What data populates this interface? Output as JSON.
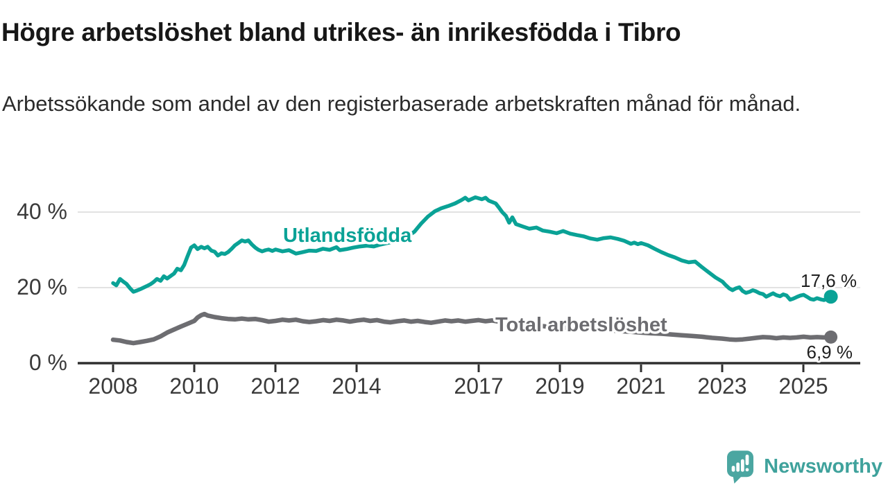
{
  "header": {
    "title": "Högre arbetslöshet bland utrikes- än inrikesfödda i Tibro",
    "subtitle": "Arbetssökande som andel av den registerbaserade arbetskraften månad för månad."
  },
  "chart_data": {
    "type": "line",
    "unit": "%",
    "x_range": [
      2008,
      2025.67
    ],
    "ylim": [
      0,
      46
    ],
    "grid": "horizontal",
    "yticks": [
      "40 %",
      "20 %",
      "0 %"
    ],
    "ytick_values": [
      40,
      20,
      0
    ],
    "xticks": [
      "2008",
      "2010",
      "2012",
      "2014",
      "2017",
      "2019",
      "2021",
      "2023",
      "2025"
    ],
    "xtick_values": [
      2008,
      2010,
      2012,
      2014,
      2017,
      2019,
      2021,
      2023,
      2025
    ],
    "series": [
      {
        "name": "Utlandsfödda",
        "color": "#0aa296",
        "line_width": 5.5,
        "dot_radius": 10,
        "end_label": "17,6 %",
        "end_value": 17.6,
        "points": [
          [
            2008.0,
            21.2
          ],
          [
            2008.08,
            20.6
          ],
          [
            2008.17,
            22.3
          ],
          [
            2008.25,
            21.6
          ],
          [
            2008.33,
            21.0
          ],
          [
            2008.42,
            19.8
          ],
          [
            2008.5,
            18.9
          ],
          [
            2008.58,
            19.2
          ],
          [
            2008.67,
            19.6
          ],
          [
            2008.75,
            20.0
          ],
          [
            2008.83,
            20.4
          ],
          [
            2008.92,
            20.9
          ],
          [
            2009.0,
            21.5
          ],
          [
            2009.08,
            22.3
          ],
          [
            2009.17,
            21.8
          ],
          [
            2009.25,
            23.0
          ],
          [
            2009.33,
            22.4
          ],
          [
            2009.42,
            23.1
          ],
          [
            2009.5,
            23.7
          ],
          [
            2009.58,
            25.0
          ],
          [
            2009.67,
            24.6
          ],
          [
            2009.75,
            26.0
          ],
          [
            2009.83,
            28.2
          ],
          [
            2009.92,
            30.6
          ],
          [
            2010.0,
            31.2
          ],
          [
            2010.08,
            30.2
          ],
          [
            2010.17,
            30.8
          ],
          [
            2010.25,
            30.4
          ],
          [
            2010.33,
            30.8
          ],
          [
            2010.42,
            29.8
          ],
          [
            2010.5,
            29.5
          ],
          [
            2010.58,
            28.5
          ],
          [
            2010.67,
            29.1
          ],
          [
            2010.75,
            28.9
          ],
          [
            2010.83,
            29.4
          ],
          [
            2010.92,
            30.3
          ],
          [
            2011.0,
            31.2
          ],
          [
            2011.08,
            31.8
          ],
          [
            2011.17,
            32.5
          ],
          [
            2011.25,
            32.2
          ],
          [
            2011.33,
            32.5
          ],
          [
            2011.42,
            31.4
          ],
          [
            2011.5,
            30.6
          ],
          [
            2011.58,
            30.0
          ],
          [
            2011.67,
            29.6
          ],
          [
            2011.75,
            29.9
          ],
          [
            2011.83,
            30.1
          ],
          [
            2011.92,
            29.7
          ],
          [
            2012.0,
            30.1
          ],
          [
            2012.17,
            29.6
          ],
          [
            2012.33,
            29.9
          ],
          [
            2012.5,
            29.0
          ],
          [
            2012.67,
            29.4
          ],
          [
            2012.83,
            29.8
          ],
          [
            2013.0,
            29.7
          ],
          [
            2013.17,
            30.3
          ],
          [
            2013.33,
            30.0
          ],
          [
            2013.5,
            30.7
          ],
          [
            2013.58,
            29.9
          ],
          [
            2013.75,
            30.2
          ],
          [
            2013.92,
            30.6
          ],
          [
            2014.08,
            30.9
          ],
          [
            2014.25,
            31.1
          ],
          [
            2014.42,
            30.9
          ],
          [
            2014.58,
            31.4
          ],
          [
            2014.75,
            31.8
          ],
          [
            2014.92,
            32.2
          ],
          [
            2015.08,
            32.7
          ],
          [
            2015.25,
            33.6
          ],
          [
            2015.42,
            34.8
          ],
          [
            2015.58,
            36.9
          ],
          [
            2015.75,
            38.8
          ],
          [
            2015.92,
            40.2
          ],
          [
            2016.08,
            41.0
          ],
          [
            2016.25,
            41.6
          ],
          [
            2016.42,
            42.3
          ],
          [
            2016.58,
            43.2
          ],
          [
            2016.67,
            43.8
          ],
          [
            2016.75,
            43.1
          ],
          [
            2016.92,
            43.9
          ],
          [
            2017.08,
            43.4
          ],
          [
            2017.17,
            43.8
          ],
          [
            2017.25,
            43.0
          ],
          [
            2017.42,
            42.3
          ],
          [
            2017.5,
            41.2
          ],
          [
            2017.58,
            40.0
          ],
          [
            2017.67,
            39.0
          ],
          [
            2017.75,
            37.2
          ],
          [
            2017.83,
            38.6
          ],
          [
            2017.92,
            36.8
          ],
          [
            2018.08,
            36.2
          ],
          [
            2018.25,
            35.6
          ],
          [
            2018.42,
            35.9
          ],
          [
            2018.58,
            35.1
          ],
          [
            2018.75,
            34.8
          ],
          [
            2018.92,
            34.4
          ],
          [
            2019.08,
            35.0
          ],
          [
            2019.25,
            34.3
          ],
          [
            2019.42,
            33.9
          ],
          [
            2019.58,
            33.6
          ],
          [
            2019.75,
            33.0
          ],
          [
            2019.92,
            32.7
          ],
          [
            2020.08,
            33.1
          ],
          [
            2020.25,
            33.3
          ],
          [
            2020.42,
            32.9
          ],
          [
            2020.58,
            32.4
          ],
          [
            2020.75,
            31.6
          ],
          [
            2020.83,
            31.9
          ],
          [
            2020.92,
            31.5
          ],
          [
            2021.0,
            31.8
          ],
          [
            2021.17,
            31.2
          ],
          [
            2021.33,
            30.3
          ],
          [
            2021.5,
            29.4
          ],
          [
            2021.67,
            28.6
          ],
          [
            2021.83,
            28.0
          ],
          [
            2022.0,
            27.2
          ],
          [
            2022.17,
            26.7
          ],
          [
            2022.33,
            26.9
          ],
          [
            2022.5,
            25.4
          ],
          [
            2022.67,
            24.0
          ],
          [
            2022.83,
            22.7
          ],
          [
            2023.0,
            21.6
          ],
          [
            2023.08,
            20.7
          ],
          [
            2023.17,
            19.8
          ],
          [
            2023.25,
            19.3
          ],
          [
            2023.33,
            19.8
          ],
          [
            2023.42,
            20.1
          ],
          [
            2023.5,
            19.1
          ],
          [
            2023.58,
            18.6
          ],
          [
            2023.67,
            18.9
          ],
          [
            2023.75,
            19.3
          ],
          [
            2023.83,
            19.0
          ],
          [
            2023.92,
            18.5
          ],
          [
            2024.0,
            18.3
          ],
          [
            2024.08,
            17.6
          ],
          [
            2024.17,
            18.1
          ],
          [
            2024.25,
            18.5
          ],
          [
            2024.33,
            18.0
          ],
          [
            2024.42,
            17.7
          ],
          [
            2024.5,
            18.2
          ],
          [
            2024.58,
            17.9
          ],
          [
            2024.67,
            16.8
          ],
          [
            2024.75,
            17.1
          ],
          [
            2024.83,
            17.5
          ],
          [
            2024.92,
            17.9
          ],
          [
            2025.0,
            18.1
          ],
          [
            2025.08,
            17.6
          ],
          [
            2025.17,
            17.0
          ],
          [
            2025.25,
            16.8
          ],
          [
            2025.33,
            17.2
          ],
          [
            2025.42,
            16.9
          ],
          [
            2025.5,
            16.7
          ],
          [
            2025.58,
            17.1
          ],
          [
            2025.67,
            17.6
          ]
        ]
      },
      {
        "name": "Total arbetslöshet",
        "color": "#6d6d71",
        "line_width": 6.5,
        "dot_radius": 9.5,
        "end_label": "6,9 %",
        "end_value": 6.9,
        "points": [
          [
            2008.0,
            6.2
          ],
          [
            2008.17,
            6.0
          ],
          [
            2008.33,
            5.6
          ],
          [
            2008.5,
            5.3
          ],
          [
            2008.67,
            5.6
          ],
          [
            2008.83,
            5.9
          ],
          [
            2009.0,
            6.3
          ],
          [
            2009.17,
            7.1
          ],
          [
            2009.33,
            8.1
          ],
          [
            2009.5,
            8.9
          ],
          [
            2009.67,
            9.7
          ],
          [
            2009.83,
            10.4
          ],
          [
            2010.0,
            11.2
          ],
          [
            2010.08,
            12.1
          ],
          [
            2010.17,
            12.7
          ],
          [
            2010.25,
            13.0
          ],
          [
            2010.33,
            12.6
          ],
          [
            2010.5,
            12.2
          ],
          [
            2010.67,
            11.9
          ],
          [
            2010.83,
            11.7
          ],
          [
            2011.0,
            11.6
          ],
          [
            2011.17,
            11.8
          ],
          [
            2011.33,
            11.6
          ],
          [
            2011.5,
            11.7
          ],
          [
            2011.67,
            11.4
          ],
          [
            2011.83,
            11.0
          ],
          [
            2012.0,
            11.2
          ],
          [
            2012.17,
            11.5
          ],
          [
            2012.33,
            11.3
          ],
          [
            2012.5,
            11.5
          ],
          [
            2012.67,
            11.1
          ],
          [
            2012.83,
            10.9
          ],
          [
            2013.0,
            11.1
          ],
          [
            2013.17,
            11.4
          ],
          [
            2013.33,
            11.2
          ],
          [
            2013.5,
            11.5
          ],
          [
            2013.67,
            11.3
          ],
          [
            2013.83,
            11.0
          ],
          [
            2014.0,
            11.3
          ],
          [
            2014.17,
            11.5
          ],
          [
            2014.33,
            11.2
          ],
          [
            2014.5,
            11.4
          ],
          [
            2014.67,
            11.0
          ],
          [
            2014.83,
            10.8
          ],
          [
            2015.0,
            11.1
          ],
          [
            2015.17,
            11.3
          ],
          [
            2015.33,
            11.0
          ],
          [
            2015.5,
            11.2
          ],
          [
            2015.67,
            10.9
          ],
          [
            2015.83,
            10.7
          ],
          [
            2016.0,
            11.0
          ],
          [
            2016.17,
            11.3
          ],
          [
            2016.33,
            11.1
          ],
          [
            2016.5,
            11.3
          ],
          [
            2016.67,
            11.0
          ],
          [
            2016.83,
            11.2
          ],
          [
            2017.0,
            11.4
          ],
          [
            2017.17,
            11.1
          ],
          [
            2017.33,
            11.3
          ],
          [
            2017.5,
            11.0
          ],
          [
            2017.67,
            10.7
          ],
          [
            2017.83,
            10.4
          ],
          [
            2018.0,
            10.3
          ],
          [
            2018.25,
            10.1
          ],
          [
            2018.5,
            9.9
          ],
          [
            2018.75,
            9.6
          ],
          [
            2019.0,
            9.5
          ],
          [
            2019.25,
            9.3
          ],
          [
            2019.5,
            9.1
          ],
          [
            2019.75,
            8.9
          ],
          [
            2020.0,
            8.8
          ],
          [
            2020.25,
            8.7
          ],
          [
            2020.5,
            8.5
          ],
          [
            2020.75,
            8.3
          ],
          [
            2021.0,
            8.1
          ],
          [
            2021.25,
            7.9
          ],
          [
            2021.5,
            7.8
          ],
          [
            2021.75,
            7.6
          ],
          [
            2022.0,
            7.4
          ],
          [
            2022.25,
            7.2
          ],
          [
            2022.5,
            7.0
          ],
          [
            2022.75,
            6.7
          ],
          [
            2023.0,
            6.5
          ],
          [
            2023.17,
            6.3
          ],
          [
            2023.33,
            6.2
          ],
          [
            2023.5,
            6.3
          ],
          [
            2023.67,
            6.5
          ],
          [
            2023.83,
            6.7
          ],
          [
            2024.0,
            6.9
          ],
          [
            2024.17,
            6.8
          ],
          [
            2024.33,
            6.6
          ],
          [
            2024.5,
            6.8
          ],
          [
            2024.67,
            6.7
          ],
          [
            2024.83,
            6.8
          ],
          [
            2025.0,
            7.0
          ],
          [
            2025.17,
            6.8
          ],
          [
            2025.33,
            6.9
          ],
          [
            2025.5,
            6.8
          ],
          [
            2025.67,
            6.9
          ]
        ]
      }
    ]
  },
  "footer": {
    "brand": "Newsworthy",
    "brand_color": "#3fa29c"
  }
}
